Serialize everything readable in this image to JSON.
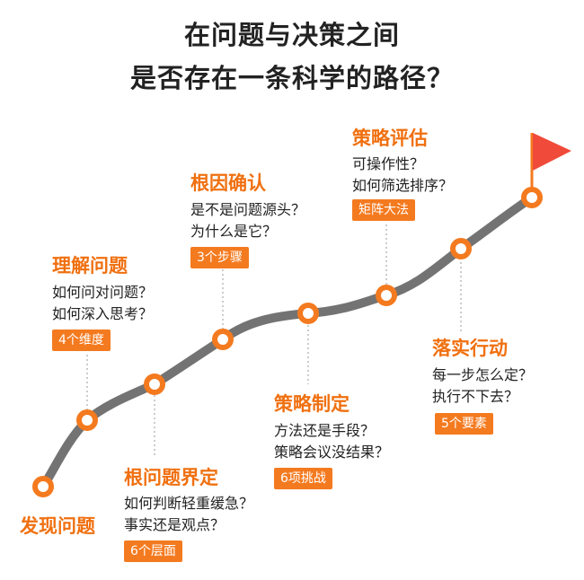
{
  "title_line1": "在问题与决策之间",
  "title_line2": "是否存在一条科学的路径？",
  "colors": {
    "accent": "#f47a1f",
    "title_orange": "#f07010",
    "path": "#737373",
    "flag": "#f04a3a"
  },
  "stages": [
    {
      "title": "发现问题",
      "questions": [],
      "badge": ""
    },
    {
      "title": "理解问题",
      "questions": [
        "如何问对问题？",
        "如何深入思考？"
      ],
      "badge": "4个维度"
    },
    {
      "title": "根问题界定",
      "questions": [
        "如何判断轻重缓急？",
        "事实还是观点？"
      ],
      "badge": "6个层面"
    },
    {
      "title": "根因确认",
      "questions": [
        "是不是问题源头？",
        "为什么是它？"
      ],
      "badge": "3个步骤"
    },
    {
      "title": "策略制定",
      "questions": [
        "方法还是手段？",
        "策略会议没结果？"
      ],
      "badge": "6项挑战"
    },
    {
      "title": "策略评估",
      "questions": [
        "可操作性？",
        "如何筛选排序？"
      ],
      "badge": "矩阵大法"
    },
    {
      "title": "落实行动",
      "questions": [
        "每一步怎么定？",
        "执行不下去？"
      ],
      "badge": "5个要素"
    }
  ]
}
